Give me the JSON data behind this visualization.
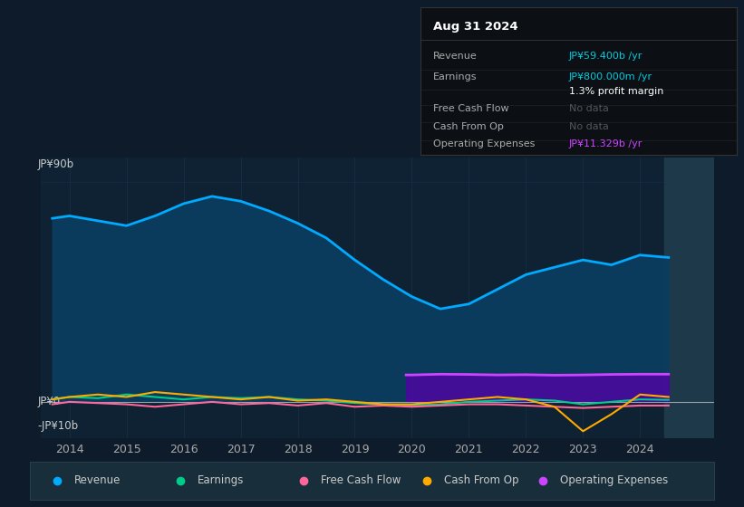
{
  "bg_color": "#0d1b2a",
  "plot_bg": "#0e2233",
  "title": "Aug 31 2024",
  "info_rows": [
    {
      "label": "Revenue",
      "value": "JP¥59.400b /yr",
      "value_color": "#00ccdd"
    },
    {
      "label": "Earnings",
      "value": "JP¥800.000m /yr",
      "value_color": "#00ccdd"
    },
    {
      "label": "",
      "value": "1.3% profit margin",
      "value_color": "#ffffff"
    },
    {
      "label": "Free Cash Flow",
      "value": "No data",
      "value_color": "#555555"
    },
    {
      "label": "Cash From Op",
      "value": "No data",
      "value_color": "#555555"
    },
    {
      "label": "Operating Expenses",
      "value": "JP¥11.329b /yr",
      "value_color": "#cc44ff"
    }
  ],
  "y_label_top": "JP¥90b",
  "y_label_zero": "JP¥0",
  "y_label_neg": "-JP¥10b",
  "ylim": [
    -15,
    100
  ],
  "xlim": [
    2013.5,
    2025.3
  ],
  "x_ticks": [
    2014,
    2015,
    2016,
    2017,
    2018,
    2019,
    2020,
    2021,
    2022,
    2023,
    2024
  ],
  "highlight_x_start": 2024.42,
  "highlight_color": "#1e3a4a",
  "revenue_x": [
    2013.7,
    2014.0,
    2014.5,
    2015.0,
    2015.5,
    2016.0,
    2016.5,
    2017.0,
    2017.5,
    2018.0,
    2018.5,
    2019.0,
    2019.5,
    2020.0,
    2020.5,
    2021.0,
    2021.5,
    2022.0,
    2022.5,
    2023.0,
    2023.5,
    2024.0,
    2024.5
  ],
  "revenue_y": [
    75,
    76,
    74,
    72,
    76,
    81,
    84,
    82,
    78,
    73,
    67,
    58,
    50,
    43,
    38,
    40,
    46,
    52,
    55,
    58,
    56,
    60,
    59
  ],
  "revenue_color": "#00aaff",
  "revenue_fill": "#0a3d5f",
  "earnings_x": [
    2013.7,
    2014.0,
    2014.5,
    2015.0,
    2015.5,
    2016.0,
    2016.5,
    2017.0,
    2017.5,
    2018.0,
    2018.5,
    2019.0,
    2019.5,
    2020.0,
    2020.5,
    2021.0,
    2021.5,
    2022.0,
    2022.5,
    2023.0,
    2023.5,
    2024.0,
    2024.5
  ],
  "earnings_y": [
    1,
    2,
    1.5,
    3,
    2,
    1,
    2,
    1.5,
    2,
    1,
    0.5,
    -0.5,
    -1,
    -1.5,
    -1,
    0,
    0.5,
    1,
    0.5,
    -1,
    0,
    1,
    0.8
  ],
  "earnings_color": "#00cc88",
  "fcf_x": [
    2013.7,
    2014.0,
    2014.5,
    2015.0,
    2015.5,
    2016.0,
    2016.5,
    2017.0,
    2017.5,
    2018.0,
    2018.5,
    2019.0,
    2019.5,
    2020.0,
    2020.5,
    2021.0,
    2021.5,
    2022.0,
    2022.5,
    2023.0,
    2023.5,
    2024.0,
    2024.5
  ],
  "fcf_y": [
    -1,
    0,
    -0.5,
    -1,
    -2,
    -1,
    0,
    -1,
    -0.5,
    -1.5,
    -0.5,
    -2,
    -1.5,
    -2,
    -1.5,
    -1,
    -1,
    -1.5,
    -2,
    -2.5,
    -2,
    -1.5,
    -1.5
  ],
  "fcf_color": "#ff6699",
  "cfo_x": [
    2013.7,
    2014.0,
    2014.5,
    2015.0,
    2015.5,
    2016.0,
    2016.5,
    2017.0,
    2017.5,
    2018.0,
    2018.5,
    2019.0,
    2019.5,
    2020.0,
    2020.5,
    2021.0,
    2021.5,
    2022.0,
    2022.5,
    2023.0,
    2023.5,
    2024.0,
    2024.5
  ],
  "cfo_y": [
    1,
    2,
    3,
    2,
    4,
    3,
    2,
    1,
    2,
    0.5,
    1,
    0,
    -1,
    -1,
    0,
    1,
    2,
    1,
    -2,
    -12,
    -5,
    3,
    2
  ],
  "cfo_color": "#ffaa00",
  "opex_x": [
    2019.9,
    2020.0,
    2020.5,
    2021.0,
    2021.5,
    2022.0,
    2022.5,
    2023.0,
    2023.5,
    2024.0,
    2024.5
  ],
  "opex_y": [
    11,
    11,
    11.3,
    11.2,
    11.0,
    11.1,
    10.9,
    11.0,
    11.2,
    11.3,
    11.3
  ],
  "opex_color": "#cc44ff",
  "opex_fill": "#5500aa",
  "zero_line_color": "#cccccc",
  "grid_color": "#1a3a50",
  "legend": [
    {
      "label": "Revenue",
      "color": "#00aaff"
    },
    {
      "label": "Earnings",
      "color": "#00cc88"
    },
    {
      "label": "Free Cash Flow",
      "color": "#ff6699"
    },
    {
      "label": "Cash From Op",
      "color": "#ffaa00"
    },
    {
      "label": "Operating Expenses",
      "color": "#cc44ff"
    }
  ],
  "legend_bg": "#182e3a",
  "legend_text_color": "#cccccc"
}
